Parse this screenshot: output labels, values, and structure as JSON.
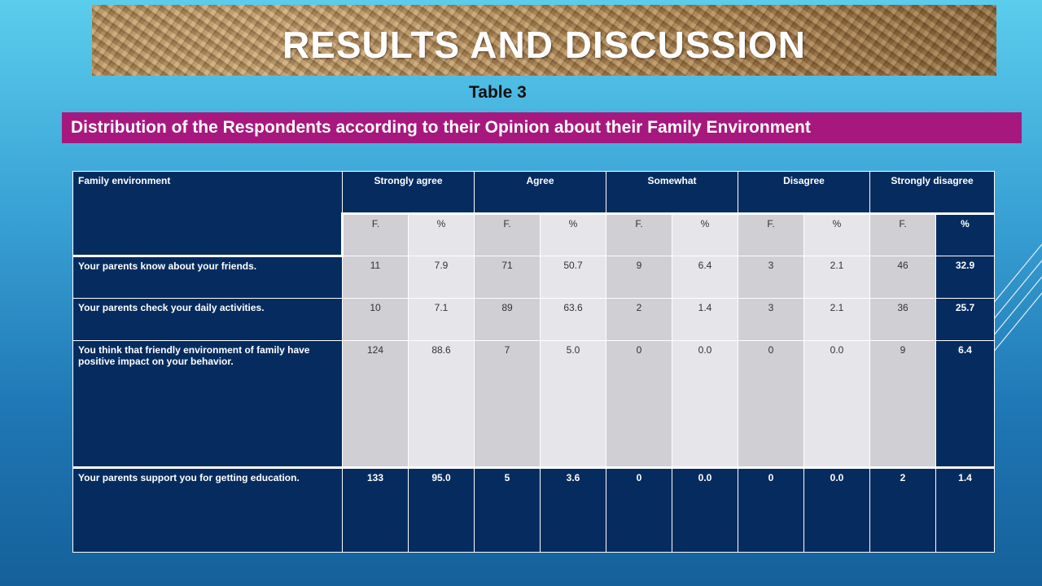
{
  "slide": {
    "title": "RESULTS AND DISCUSSION",
    "table_label": "Table 3",
    "caption": "Distribution of the Respondents according to their Opinion about their Family Environment"
  },
  "table": {
    "header": {
      "first": "Family environment",
      "groups": [
        "Strongly agree",
        "Agree",
        "Somewhat",
        "Disagree",
        "Strongly disagree"
      ],
      "sub": [
        "F.",
        "%",
        "F.",
        "%",
        "F.",
        "%",
        "F.",
        "%",
        "F.",
        "%"
      ]
    },
    "rows": [
      {
        "label": "Your parents know about your friends.",
        "values": [
          "11",
          "7.9",
          "71",
          "50.7",
          "9",
          "6.4",
          "3",
          "2.1",
          "46",
          "32.9"
        ]
      },
      {
        "label": "Your parents check your daily activities.",
        "values": [
          "10",
          "7.1",
          "89",
          "63.6",
          "2",
          "1.4",
          "3",
          "2.1",
          "36",
          "25.7"
        ]
      },
      {
        "label": "You think that friendly environment  of family have positive  impact on your behavior.",
        "values": [
          "124",
          "88.6",
          "7",
          "5.0",
          "0",
          "0.0",
          "0",
          "0.0",
          "9",
          "6.4"
        ]
      },
      {
        "label": "Your parents support you for getting education.",
        "values": [
          "133",
          "95.0",
          "5",
          "3.6",
          "0",
          "0.0",
          "0",
          "0.0",
          "2",
          "1.4"
        ]
      }
    ]
  }
}
